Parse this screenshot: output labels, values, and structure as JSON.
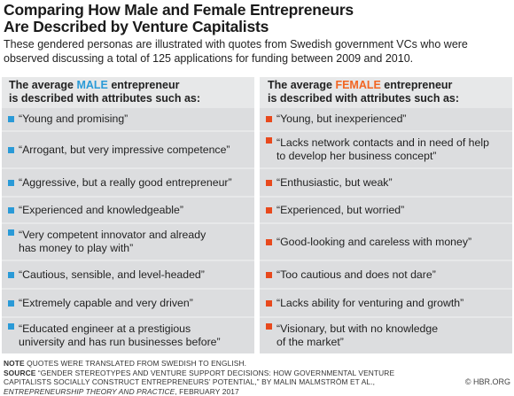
{
  "title_lines": [
    "Comparing How Male and Female Entrepreneurs",
    "Are Described by Venture Capitalists"
  ],
  "subtitle_lines": [
    "These gendered personas are illustrated with quotes from Swedish government VCs who were",
    "observed discussing a total of 125 applications for funding between 2009 and 2010."
  ],
  "colors": {
    "male_accent": "#2a9ad7",
    "female_accent": "#e8491d",
    "panel": "#e7e8e9",
    "row": "#dcdddf"
  },
  "male": {
    "head_pre": "The average ",
    "head_accent": "MALE",
    "head_post": " entrepreneur",
    "head_line2": "is described with attributes such as:",
    "items": [
      "“Young and promising”",
      "“Arrogant, but very impressive competence”",
      "“Aggressive, but a really good entrepreneur”",
      "“Experienced and knowledgeable”",
      "“Very competent innovator and already\nhas money to play with”",
      "“Cautious, sensible, and level-headed”",
      "“Extremely capable and very driven”",
      "“Educated engineer at a prestigious\nuniversity and has run businesses before”"
    ]
  },
  "female": {
    "head_pre": "The average ",
    "head_accent": "FEMALE",
    "head_post": " entrepreneur",
    "head_line2": "is described with attributes such as:",
    "items": [
      "“Young, but inexperienced”",
      "“Lacks network contacts and in need of help\nto develop her business concept”",
      "“Enthusiastic, but weak”",
      "“Experienced, but worried”",
      "“Good-looking and careless with money”",
      "“Too cautious and does not dare”",
      "“Lacks ability for venturing and growth”",
      "“Visionary, but with no knowledge\nof the market”"
    ]
  },
  "notes": {
    "note_label": "NOTE",
    "note_text": " QUOTES WERE TRANSLATED FROM SWEDISH TO ENGLISH.",
    "source_label": "SOURCE",
    "source_text1": " “GENDER STEREOTYPES AND VENTURE SUPPORT DECISIONS: HOW GOVERNMENTAL VENTURE",
    "source_text2": "CAPITALISTS SOCIALLY CONSTRUCT ENTREPRENEURS’ POTENTIAL,” BY MALIN MALMSTRÖM ET AL.,",
    "source_journal": "ENTREPRENEURSHIP THEORY AND PRACTICE",
    "source_date": ", FEBRUARY 2017"
  },
  "credit": "© HBR.ORG"
}
